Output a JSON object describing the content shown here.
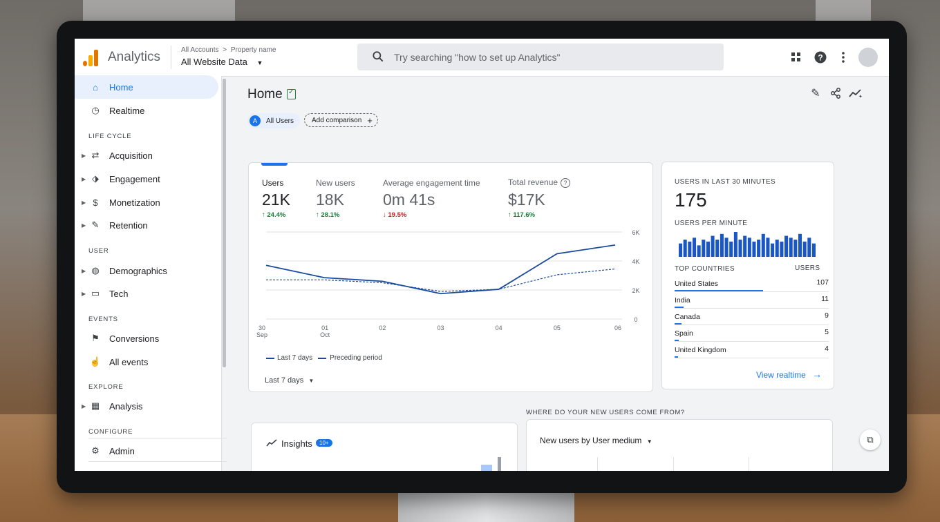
{
  "app": {
    "title": "Analytics"
  },
  "breadcrumb": {
    "account": "All Accounts",
    "separator": ">",
    "property_label": "Property name",
    "property_value": "All Website Data"
  },
  "search": {
    "placeholder": "Try searching \"how to set up Analytics\""
  },
  "topbar_icons": [
    "apps-grid-icon",
    "help-icon",
    "more-vert-icon",
    "avatar"
  ],
  "sidebar": {
    "items": [
      {
        "label": "Home",
        "icon": "home-icon",
        "active": true
      },
      {
        "label": "Realtime",
        "icon": "clock-icon"
      }
    ],
    "sections": [
      {
        "label": "LIFE CYCLE",
        "items": [
          "Acquisition",
          "Engagement",
          "Monetization",
          "Retention"
        ]
      },
      {
        "label": "USER",
        "items": [
          "Demographics",
          "Tech"
        ]
      },
      {
        "label": "EVENTS",
        "items": [
          "Conversions",
          "All events"
        ]
      },
      {
        "label": "EXPLORE",
        "items": [
          "Analysis"
        ]
      },
      {
        "label": "CONFIGURE",
        "items": [
          "Admin"
        ]
      }
    ]
  },
  "main": {
    "page_title": "Home",
    "chip_all_users": "All Users",
    "chip_all_users_letter": "A",
    "chip_add": "Add comparison",
    "metrics": [
      {
        "name": "Users",
        "value": "21K",
        "change": "↑ 24.4%",
        "direction": "up"
      },
      {
        "name": "New users",
        "value": "18K",
        "change": "↑ 28.1%",
        "direction": "up"
      },
      {
        "name": "Average engagement time",
        "value": "0m 41s",
        "change": "↓ 19.5%",
        "direction": "down"
      },
      {
        "name": "Total revenue",
        "value": "$17K",
        "change": "↑ 117.6%",
        "direction": "up"
      }
    ],
    "legend": {
      "current": "Last 7 days",
      "previous": "Preceding period"
    },
    "range_selector": "Last 7 days"
  },
  "chart_data": {
    "type": "line",
    "x": [
      "30 Sep",
      "01 Oct",
      "02",
      "03",
      "04",
      "05",
      "06"
    ],
    "x_tick_labels": [
      [
        "30",
        "Sep"
      ],
      [
        "01",
        "Oct"
      ],
      [
        "02"
      ],
      [
        "03"
      ],
      [
        "04"
      ],
      [
        "05"
      ],
      [
        "06"
      ]
    ],
    "y_ticks": [
      "0",
      "2K",
      "4K",
      "6K"
    ],
    "ylim": [
      0,
      6000
    ],
    "series": [
      {
        "name": "Last 7 days",
        "style": "solid",
        "color": "#1a4b9c",
        "values": [
          3700,
          2850,
          2600,
          1750,
          2050,
          4500,
          5100
        ]
      },
      {
        "name": "Preceding period",
        "style": "dashed",
        "color": "#1a4b9c",
        "values": [
          2700,
          2700,
          2500,
          1900,
          2050,
          3050,
          3450
        ]
      }
    ],
    "grid": true
  },
  "realtime": {
    "title": "USERS IN LAST 30 MINUTES",
    "value": "175",
    "per_minute_label": "USERS PER MINUTE",
    "per_minute": [
      7,
      9,
      8,
      10,
      6,
      9,
      8,
      11,
      9,
      12,
      10,
      8,
      13,
      9,
      11,
      10,
      8,
      9,
      12,
      10,
      7,
      9,
      8,
      11,
      10,
      9,
      12,
      8,
      10,
      7
    ],
    "countries_header": "TOP COUNTRIES",
    "users_header": "USERS",
    "countries": [
      {
        "name": "United States",
        "value": "107",
        "share": 1.0
      },
      {
        "name": "India",
        "value": "11",
        "share": 0.1
      },
      {
        "name": "Canada",
        "value": "9",
        "share": 0.08
      },
      {
        "name": "Spain",
        "value": "5",
        "share": 0.05
      },
      {
        "name": "United Kingdom",
        "value": "4",
        "share": 0.04
      }
    ],
    "view_link": "View realtime"
  },
  "bottom": {
    "where_label": "WHERE DO YOUR NEW USERS COME FROM?",
    "insights_title": "Insights",
    "insights_badge": "10+",
    "new_users_selector": "New users by User medium"
  },
  "colors": {
    "accent": "#1a73e8",
    "up": "#188038",
    "down": "#c5221f",
    "chart_line": "#1a4b9c"
  }
}
